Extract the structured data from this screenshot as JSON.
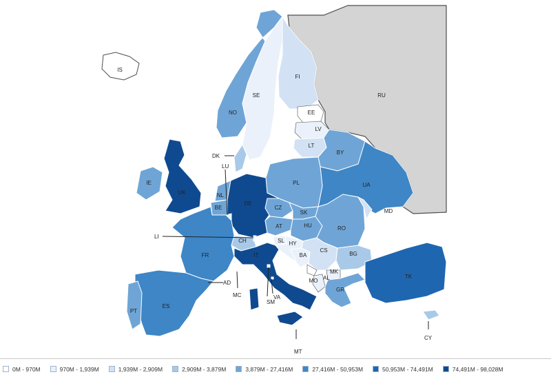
{
  "colors": {
    "c0": "#ffffff",
    "c1": "#eaf1fa",
    "c2": "#d2e2f4",
    "c3": "#a9c9e8",
    "c4": "#6fa5d6",
    "c5": "#3e86c6",
    "c6": "#1f66b0",
    "c7": "#0f4a90",
    "russia": "#d4d4d4",
    "outline": "#4d4d4d"
  },
  "countries": [
    {
      "code": "IS",
      "cls": "c0"
    },
    {
      "code": "NO",
      "cls": "c4"
    },
    {
      "code": "SE",
      "cls": "c1"
    },
    {
      "code": "FI",
      "cls": "c2"
    },
    {
      "code": "RU",
      "cls": "russia"
    },
    {
      "code": "EE",
      "cls": "c0"
    },
    {
      "code": "LV",
      "cls": "c1"
    },
    {
      "code": "LT",
      "cls": "c2"
    },
    {
      "code": "BY",
      "cls": "c4"
    },
    {
      "code": "UA",
      "cls": "c5"
    },
    {
      "code": "PL",
      "cls": "c4"
    },
    {
      "code": "DE",
      "cls": "c7"
    },
    {
      "code": "DK",
      "cls": "c3"
    },
    {
      "code": "NL",
      "cls": "c4"
    },
    {
      "code": "BE",
      "cls": "c4"
    },
    {
      "code": "LU",
      "cls": "c1"
    },
    {
      "code": "CZ",
      "cls": "c4"
    },
    {
      "code": "SK",
      "cls": "c4"
    },
    {
      "code": "AT",
      "cls": "c4"
    },
    {
      "code": "HU",
      "cls": "c4"
    },
    {
      "code": "RO",
      "cls": "c4"
    },
    {
      "code": "MD",
      "cls": "c2"
    },
    {
      "code": "CH",
      "cls": "c3"
    },
    {
      "code": "SL",
      "cls": "c1"
    },
    {
      "code": "HY",
      "cls": "c1"
    },
    {
      "code": "BA",
      "cls": "c1"
    },
    {
      "code": "CS",
      "cls": "c2"
    },
    {
      "code": "BG",
      "cls": "c3"
    },
    {
      "code": "MK",
      "cls": "c1"
    },
    {
      "code": "AL",
      "cls": "c1"
    },
    {
      "code": "MO",
      "cls": "c0"
    },
    {
      "code": "GR",
      "cls": "c4"
    },
    {
      "code": "TK",
      "cls": "c6"
    },
    {
      "code": "CY",
      "cls": "c3"
    },
    {
      "code": "MT",
      "cls": "c0"
    },
    {
      "code": "IT",
      "cls": "c7"
    },
    {
      "code": "FR",
      "cls": "c5"
    },
    {
      "code": "ES",
      "cls": "c5"
    },
    {
      "code": "PT",
      "cls": "c4"
    },
    {
      "code": "UK",
      "cls": "c7"
    },
    {
      "code": "IE",
      "cls": "c4"
    },
    {
      "code": "LI",
      "cls": "c0"
    },
    {
      "code": "AD",
      "cls": "c0"
    },
    {
      "code": "MC",
      "cls": "c0"
    },
    {
      "code": "SM",
      "cls": "c0"
    },
    {
      "code": "VA",
      "cls": "c0"
    }
  ],
  "legend": [
    {
      "label": "0M - 970M",
      "color": "#ffffff"
    },
    {
      "label": "970M - 1,939M",
      "color": "#eaf1fa"
    },
    {
      "label": "1,939M - 2,909M",
      "color": "#d2e2f4"
    },
    {
      "label": "2,909M - 3,879M",
      "color": "#a9c9e8"
    },
    {
      "label": "3,879M - 27,416M",
      "color": "#6fa5d6"
    },
    {
      "label": "27,416M - 50,953M",
      "color": "#3e86c6"
    },
    {
      "label": "50,953M - 74,491M",
      "color": "#1f66b0"
    },
    {
      "label": "74,491M - 98,028M",
      "color": "#0f4a90"
    }
  ]
}
